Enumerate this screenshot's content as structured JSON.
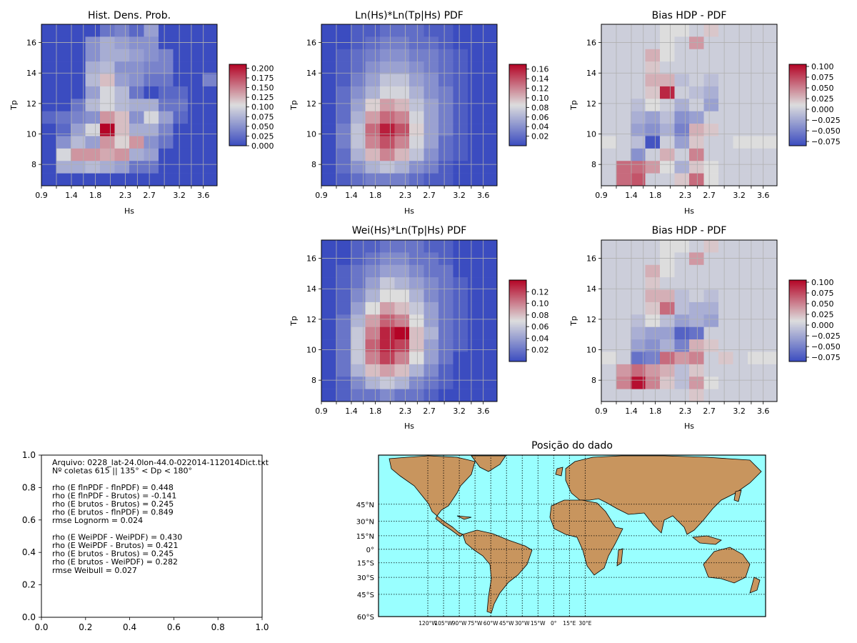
{
  "colors": {
    "cool": "#3b4cc0",
    "neutral": "#dddddd",
    "warm": "#b40426",
    "ocean": "#99ffff",
    "land": "#c8955e"
  },
  "chart_data": [
    {
      "type": "heatmap",
      "title": "Hist. Dens. Prob.",
      "xlabel": "Hs",
      "ylabel": "Tp",
      "xticks": [
        "0.9",
        "1.4",
        "1.8",
        "2.3",
        "2.7",
        "3.2",
        "3.6"
      ],
      "yticks": [
        "8",
        "10",
        "12",
        "14",
        "16"
      ],
      "colorbar_ticks": [
        "0.000",
        "0.025",
        "0.050",
        "0.075",
        "0.100",
        "0.125",
        "0.150",
        "0.175",
        "0.200"
      ],
      "vmin": 0.0,
      "vmax": 0.21,
      "values": [
        [
          0.0,
          0.0,
          0.0,
          0.0,
          0.03,
          0.04,
          0.02,
          0.06,
          0.0,
          0.0,
          0.0,
          0.0
        ],
        [
          0.0,
          0.0,
          0.0,
          0.05,
          0.07,
          0.06,
          0.05,
          0.05,
          0.0,
          0.0,
          0.0,
          0.0
        ],
        [
          0.0,
          0.0,
          0.0,
          0.05,
          0.07,
          0.07,
          0.06,
          0.05,
          0.04,
          0.0,
          0.0,
          0.0
        ],
        [
          0.0,
          0.0,
          0.0,
          0.07,
          0.08,
          0.05,
          0.05,
          0.04,
          0.04,
          0.0,
          0.0,
          0.0
        ],
        [
          0.0,
          0.0,
          0.0,
          0.08,
          0.12,
          0.06,
          0.05,
          0.03,
          0.03,
          0.0,
          0.0,
          0.04
        ],
        [
          0.0,
          0.0,
          0.0,
          0.06,
          0.1,
          0.08,
          0.03,
          0.0,
          0.02,
          0.02,
          0.0,
          0.0
        ],
        [
          0.0,
          0.0,
          0.03,
          0.08,
          0.1,
          0.08,
          0.07,
          0.07,
          0.03,
          0.03,
          0.0,
          0.0
        ],
        [
          0.02,
          0.03,
          0.04,
          0.05,
          0.14,
          0.12,
          0.05,
          0.1,
          0.06,
          0.02,
          0.0,
          0.0
        ],
        [
          0.0,
          0.02,
          0.06,
          0.1,
          0.21,
          0.12,
          0.07,
          0.07,
          0.04,
          0.0,
          0.0,
          0.0
        ],
        [
          0.0,
          0.05,
          0.08,
          0.06,
          0.14,
          0.11,
          0.14,
          0.05,
          0.03,
          0.0,
          0.0,
          0.0
        ],
        [
          0.0,
          0.1,
          0.14,
          0.14,
          0.13,
          0.14,
          0.07,
          0.06,
          0.0,
          0.0,
          0.0,
          0.0
        ],
        [
          0.0,
          0.07,
          0.07,
          0.08,
          0.07,
          0.06,
          0.03,
          0.03,
          0.0,
          0.0,
          0.0,
          0.0
        ],
        [
          0.0,
          0.0,
          0.0,
          0.0,
          0.0,
          0.0,
          0.0,
          0.0,
          0.0,
          0.0,
          0.0,
          0.0
        ]
      ]
    },
    {
      "type": "heatmap",
      "title": "Ln(Hs)*Ln(Tp|Hs) PDF",
      "xlabel": "Hs",
      "ylabel": "Tp",
      "xticks": [
        "0.9",
        "1.4",
        "1.8",
        "2.3",
        "2.7",
        "3.2",
        "3.6"
      ],
      "yticks": [
        "8",
        "10",
        "12",
        "14",
        "16"
      ],
      "colorbar_ticks": [
        "0.02",
        "0.04",
        "0.06",
        "0.08",
        "0.10",
        "0.12",
        "0.14",
        "0.16"
      ],
      "vmin": 0.0,
      "vmax": 0.17,
      "values": [
        [
          0.0,
          0.0,
          0.01,
          0.01,
          0.02,
          0.02,
          0.02,
          0.01,
          0.01,
          0.0,
          0.0,
          0.0
        ],
        [
          0.0,
          0.0,
          0.01,
          0.02,
          0.03,
          0.03,
          0.02,
          0.02,
          0.01,
          0.0,
          0.0,
          0.0
        ],
        [
          0.0,
          0.01,
          0.02,
          0.03,
          0.04,
          0.04,
          0.03,
          0.03,
          0.02,
          0.01,
          0.0,
          0.0
        ],
        [
          0.0,
          0.01,
          0.02,
          0.04,
          0.05,
          0.05,
          0.04,
          0.03,
          0.02,
          0.01,
          0.0,
          0.0
        ],
        [
          0.0,
          0.01,
          0.03,
          0.05,
          0.07,
          0.07,
          0.05,
          0.04,
          0.02,
          0.01,
          0.0,
          0.0
        ],
        [
          0.0,
          0.02,
          0.04,
          0.06,
          0.08,
          0.08,
          0.06,
          0.04,
          0.03,
          0.01,
          0.0,
          0.0
        ],
        [
          0.0,
          0.02,
          0.05,
          0.09,
          0.11,
          0.1,
          0.07,
          0.05,
          0.03,
          0.01,
          0.0,
          0.0
        ],
        [
          0.0,
          0.02,
          0.06,
          0.11,
          0.13,
          0.12,
          0.08,
          0.05,
          0.03,
          0.01,
          0.0,
          0.0
        ],
        [
          0.0,
          0.03,
          0.07,
          0.13,
          0.16,
          0.14,
          0.09,
          0.05,
          0.03,
          0.01,
          0.0,
          0.0
        ],
        [
          0.0,
          0.03,
          0.07,
          0.12,
          0.14,
          0.12,
          0.08,
          0.05,
          0.02,
          0.01,
          0.0,
          0.0
        ],
        [
          0.0,
          0.02,
          0.06,
          0.1,
          0.12,
          0.1,
          0.07,
          0.04,
          0.02,
          0.01,
          0.0,
          0.0
        ],
        [
          0.0,
          0.02,
          0.04,
          0.06,
          0.07,
          0.06,
          0.04,
          0.03,
          0.01,
          0.0,
          0.0,
          0.0
        ],
        [
          0.0,
          0.01,
          0.02,
          0.03,
          0.03,
          0.03,
          0.02,
          0.01,
          0.01,
          0.0,
          0.0,
          0.0
        ]
      ]
    },
    {
      "type": "heatmap",
      "title": "Bias HDP - PDF",
      "xlabel": "Hs",
      "ylabel": "Tp",
      "xticks": [
        "0.9",
        "1.4",
        "1.8",
        "2.3",
        "2.7",
        "3.2",
        "3.6"
      ],
      "yticks": [
        "8",
        "10",
        "12",
        "14",
        "16"
      ],
      "colorbar_ticks": [
        "−0.075",
        "−0.050",
        "−0.025",
        "0.000",
        "0.025",
        "0.050",
        "0.075",
        "0.100"
      ],
      "vmin": -0.085,
      "vmax": 0.105,
      "values": [
        [
          0.0,
          0.0,
          0.0,
          0.0,
          0.01,
          0.01,
          0.0,
          0.02,
          0.0,
          0.0,
          0.0,
          0.0
        ],
        [
          0.0,
          0.0,
          0.0,
          0.0,
          0.01,
          0.0,
          0.04,
          0.0,
          0.0,
          0.0,
          0.0,
          0.0
        ],
        [
          0.0,
          0.0,
          0.0,
          0.03,
          0.01,
          0.0,
          0.0,
          0.0,
          0.0,
          0.0,
          0.0,
          0.0
        ],
        [
          0.0,
          0.0,
          0.0,
          0.02,
          0.0,
          0.0,
          0.0,
          0.0,
          0.0,
          0.0,
          0.0,
          0.0
        ],
        [
          0.0,
          0.0,
          0.0,
          0.03,
          0.03,
          -0.01,
          0.0,
          -0.01,
          0.0,
          0.0,
          0.0,
          0.0
        ],
        [
          0.0,
          0.0,
          0.0,
          0.02,
          0.09,
          0.0,
          -0.01,
          -0.02,
          0.0,
          0.0,
          0.0,
          0.0
        ],
        [
          0.0,
          0.0,
          -0.01,
          0.01,
          0.0,
          -0.02,
          0.0,
          -0.03,
          0.0,
          0.0,
          0.0,
          0.0
        ],
        [
          0.0,
          0.0,
          -0.02,
          -0.03,
          -0.01,
          -0.04,
          -0.03,
          0.0,
          0.0,
          0.0,
          0.0,
          0.0
        ],
        [
          0.0,
          0.0,
          -0.03,
          -0.04,
          -0.02,
          -0.05,
          0.03,
          0.02,
          0.0,
          0.0,
          0.0,
          0.0
        ],
        [
          0.01,
          0.0,
          -0.01,
          -0.08,
          0.0,
          -0.03,
          0.02,
          0.0,
          0.0,
          0.01,
          0.01,
          0.01
        ],
        [
          0.0,
          0.0,
          -0.04,
          0.0,
          0.03,
          0.0,
          0.05,
          0.0,
          0.0,
          0.0,
          0.0,
          0.0
        ],
        [
          0.0,
          0.06,
          0.06,
          0.04,
          0.01,
          -0.02,
          0.02,
          0.01,
          0.0,
          0.0,
          0.0,
          0.0
        ],
        [
          0.0,
          0.06,
          0.07,
          0.0,
          0.0,
          0.02,
          0.06,
          0.01,
          0.0,
          0.0,
          0.0,
          0.0
        ]
      ]
    },
    {
      "type": "heatmap",
      "title": "Wei(Hs)*Ln(Tp|Hs) PDF",
      "xlabel": "Hs",
      "ylabel": "Tp",
      "xticks": [
        "0.9",
        "1.4",
        "1.8",
        "2.3",
        "2.7",
        "3.2",
        "3.6"
      ],
      "yticks": [
        "8",
        "10",
        "12",
        "14",
        "16"
      ],
      "colorbar_ticks": [
        "0.02",
        "0.04",
        "0.06",
        "0.08",
        "0.10",
        "0.12"
      ],
      "vmin": 0.0,
      "vmax": 0.14,
      "values": [
        [
          0.0,
          0.0,
          0.01,
          0.01,
          0.02,
          0.02,
          0.02,
          0.01,
          0.01,
          0.0,
          0.0,
          0.0
        ],
        [
          0.0,
          0.0,
          0.01,
          0.02,
          0.03,
          0.03,
          0.02,
          0.02,
          0.01,
          0.0,
          0.0,
          0.0
        ],
        [
          0.0,
          0.01,
          0.02,
          0.03,
          0.04,
          0.04,
          0.03,
          0.02,
          0.02,
          0.0,
          0.0,
          0.0
        ],
        [
          0.0,
          0.01,
          0.02,
          0.04,
          0.06,
          0.05,
          0.04,
          0.03,
          0.02,
          0.01,
          0.0,
          0.0
        ],
        [
          0.0,
          0.01,
          0.03,
          0.05,
          0.07,
          0.07,
          0.05,
          0.03,
          0.02,
          0.01,
          0.0,
          0.0
        ],
        [
          0.0,
          0.01,
          0.04,
          0.07,
          0.09,
          0.08,
          0.06,
          0.04,
          0.02,
          0.01,
          0.0,
          0.0
        ],
        [
          0.0,
          0.02,
          0.05,
          0.09,
          0.11,
          0.1,
          0.07,
          0.04,
          0.02,
          0.01,
          0.0,
          0.0
        ],
        [
          0.0,
          0.02,
          0.06,
          0.1,
          0.13,
          0.14,
          0.08,
          0.05,
          0.02,
          0.01,
          0.0,
          0.0
        ],
        [
          0.0,
          0.02,
          0.06,
          0.11,
          0.13,
          0.12,
          0.08,
          0.04,
          0.02,
          0.01,
          0.0,
          0.0
        ],
        [
          0.0,
          0.02,
          0.06,
          0.1,
          0.12,
          0.1,
          0.07,
          0.04,
          0.02,
          0.0,
          0.0,
          0.0
        ],
        [
          0.0,
          0.02,
          0.05,
          0.08,
          0.09,
          0.08,
          0.05,
          0.03,
          0.01,
          0.0,
          0.0,
          0.0
        ],
        [
          0.0,
          0.01,
          0.03,
          0.05,
          0.06,
          0.05,
          0.03,
          0.02,
          0.01,
          0.0,
          0.0,
          0.0
        ],
        [
          0.0,
          0.01,
          0.02,
          0.02,
          0.03,
          0.02,
          0.02,
          0.01,
          0.0,
          0.0,
          0.0,
          0.0
        ]
      ]
    },
    {
      "type": "heatmap",
      "title": "Bias HDP - PDF",
      "xlabel": "Hs",
      "ylabel": "Tp",
      "xticks": [
        "0.9",
        "1.4",
        "1.8",
        "2.3",
        "2.7",
        "3.2",
        "3.6"
      ],
      "yticks": [
        "8",
        "10",
        "12",
        "14",
        "16"
      ],
      "colorbar_ticks": [
        "−0.075",
        "−0.050",
        "−0.025",
        "0.000",
        "0.025",
        "0.050",
        "0.075",
        "0.100"
      ],
      "vmin": -0.085,
      "vmax": 0.105,
      "values": [
        [
          0.0,
          0.0,
          0.0,
          0.0,
          0.01,
          0.01,
          0.0,
          0.02,
          0.0,
          0.0,
          0.0,
          0.0
        ],
        [
          0.0,
          0.0,
          0.0,
          0.0,
          0.01,
          0.0,
          0.04,
          0.0,
          0.0,
          0.0,
          0.0,
          0.0
        ],
        [
          0.0,
          0.0,
          0.0,
          0.03,
          0.01,
          0.0,
          0.0,
          0.0,
          0.0,
          0.0,
          0.0,
          0.0
        ],
        [
          0.0,
          0.0,
          0.0,
          0.02,
          0.0,
          0.0,
          0.0,
          0.0,
          0.0,
          0.0,
          0.0,
          0.0
        ],
        [
          0.0,
          0.0,
          0.0,
          0.03,
          0.03,
          -0.01,
          0.0,
          -0.01,
          0.0,
          0.0,
          0.0,
          0.0
        ],
        [
          0.0,
          0.0,
          0.0,
          0.02,
          0.06,
          -0.01,
          -0.02,
          -0.02,
          0.0,
          0.0,
          0.0,
          0.0
        ],
        [
          0.0,
          0.0,
          -0.01,
          0.01,
          -0.01,
          -0.03,
          -0.02,
          -0.03,
          0.0,
          0.0,
          0.0,
          0.0
        ],
        [
          0.0,
          0.0,
          -0.02,
          -0.03,
          -0.03,
          -0.07,
          -0.06,
          0.0,
          0.0,
          0.0,
          0.0,
          0.0
        ],
        [
          0.0,
          0.0,
          -0.03,
          -0.04,
          -0.02,
          -0.05,
          0.03,
          0.02,
          0.0,
          0.0,
          0.0,
          0.0
        ],
        [
          0.01,
          0.0,
          -0.06,
          -0.05,
          0.06,
          0.04,
          0.05,
          0.0,
          0.02,
          0.0,
          0.01,
          0.01
        ],
        [
          0.0,
          0.04,
          0.06,
          0.04,
          0.03,
          -0.01,
          0.02,
          0.0,
          0.0,
          0.0,
          0.0,
          0.0
        ],
        [
          0.0,
          0.05,
          0.1,
          0.05,
          0.02,
          -0.01,
          0.04,
          0.01,
          0.0,
          0.0,
          0.0,
          0.0
        ],
        [
          0.0,
          0.0,
          0.0,
          0.0,
          0.0,
          0.0,
          0.02,
          0.0,
          0.0,
          0.0,
          0.0,
          0.0
        ]
      ]
    }
  ],
  "text_panel": {
    "xticks": [
      "0.0",
      "0.2",
      "0.4",
      "0.6",
      "0.8",
      "1.0"
    ],
    "yticks": [
      "0.0",
      "0.2",
      "0.4",
      "0.6",
      "0.8",
      "1.0"
    ],
    "lines": [
      "Arquivo: 0228_lat-24.0lon-44.0-022014-112014Dict.txt",
      "Nº coletas 615 || 135° < Dp < 180°",
      "",
      "rho (E flnPDF - flnPDF) = 0.448",
      "rho (E flnPDF - Brutos) = -0.141",
      "rho (E brutos - Brutos) = 0.245",
      "rho (E brutos - flnPDF) = 0.849",
      "rmse Lognorm = 0.024",
      "",
      "rho (E WeiPDF - WeiPDF) = 0.430",
      "rho (E WeiPDF - Brutos) = 0.421",
      "rho (E brutos - Brutos) = 0.245",
      "rho (E brutos - WeiPDF) = 0.282",
      "rmse Weibull = 0.027"
    ]
  },
  "map": {
    "title": "Posição do dado",
    "lat_labels": [
      "45°N",
      "30°N",
      "15°N",
      "0°",
      "15°S",
      "30°S",
      "45°S",
      "60°S"
    ],
    "lat_values": [
      45,
      30,
      15,
      0,
      -15,
      -30,
      -45,
      -60
    ],
    "lon_labels": [
      "120°W",
      "105°W",
      "90°W",
      "75°W",
      "60°W",
      "45°W",
      "30°W",
      "15°W",
      "0°",
      "15°E",
      "30°E"
    ],
    "lon_values": [
      -120,
      -105,
      -90,
      -75,
      -60,
      -45,
      -30,
      -15,
      0,
      15,
      30
    ]
  }
}
